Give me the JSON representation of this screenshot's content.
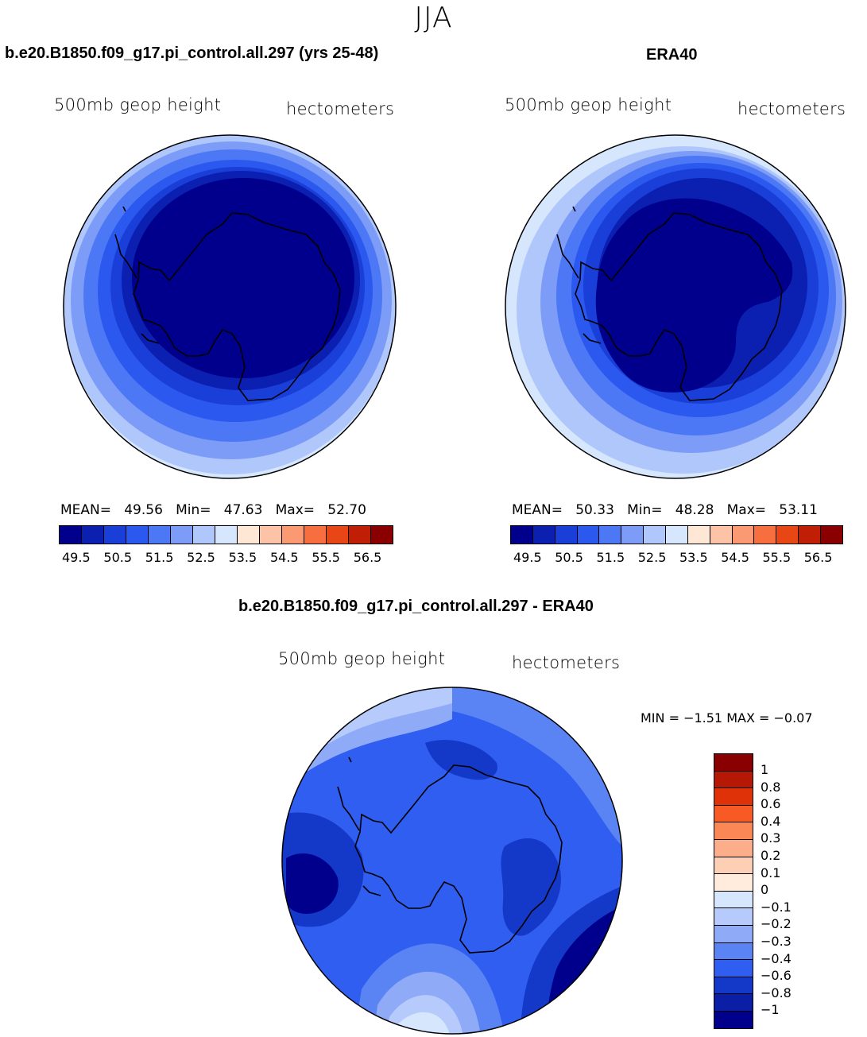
{
  "suptitle": "JJA",
  "panels": [
    {
      "title": "b.e20.B1850.f09_g17.pi_control.all.297 (yrs 25-48)",
      "field": "500mb geop height",
      "units": "hectometers",
      "mean_label": "MEAN=",
      "mean": "49.56",
      "min_label": "Min=",
      "min": "47.63",
      "max_label": "Max=",
      "max": "52.70",
      "colors": [
        "#00008c",
        "#0b1fb0",
        "#1a3fd8",
        "#2b59ef",
        "#4d78f5",
        "#7d9cf8",
        "#b0c7fb",
        "#d6e6fd",
        "#ffe7d6",
        "#fdc3a7",
        "#fb9a72",
        "#f86f3f",
        "#e84614",
        "#c01f06",
        "#8a0000"
      ]
    },
    {
      "title": "ERA40",
      "field": "500mb geop height",
      "units": "hectometers",
      "mean_label": "MEAN=",
      "mean": "50.33",
      "min_label": "Min=",
      "min": "48.28",
      "max_label": "Max=",
      "max": "53.11",
      "colors": [
        "#00008c",
        "#0b1fb0",
        "#1a3fd8",
        "#2b59ef",
        "#4d78f5",
        "#7d9cf8",
        "#b0c7fb",
        "#d6e6fd",
        "#ffe7d6",
        "#fdc3a7",
        "#fb9a72",
        "#f86f3f",
        "#e84614",
        "#c01f06",
        "#8a0000"
      ]
    }
  ],
  "colorbar_ticks": [
    "49.5",
    "50.5",
    "51.5",
    "52.5",
    "53.5",
    "54.5",
    "55.5",
    "56.5"
  ],
  "diff": {
    "title": "b.e20.B1850.f09_g17.pi_control.all.297 - ERA40",
    "field": "500mb geop height",
    "units": "hectometers",
    "minmax": "MIN =  −1.51 MAX =  −0.07",
    "levels": [
      "1",
      "0.8",
      "0.6",
      "0.4",
      "0.3",
      "0.2",
      "0.1",
      "0",
      "−0.1",
      "−0.2",
      "−0.3",
      "−0.4",
      "−0.6",
      "−0.8",
      "−1"
    ],
    "colors": [
      "#8a0000",
      "#b51804",
      "#df3209",
      "#f85a25",
      "#fb8656",
      "#fcae8a",
      "#fdcfb4",
      "#ffecdc",
      "#d6e6fd",
      "#b6cbfb",
      "#8fabf8",
      "#5a84f4",
      "#2f5ef0",
      "#1438c8",
      "#0a1fa6",
      "#00008c"
    ]
  },
  "chart_data": {
    "type": "heatmap",
    "season": "JJA",
    "maps": [
      {
        "name": "b.e20.B1850.f09_g17.pi_control.all.297 (yrs 25-48)",
        "mean": 49.56,
        "min": 47.63,
        "max": 52.7,
        "units": "hectometers"
      },
      {
        "name": "ERA40",
        "mean": 50.33,
        "min": 48.28,
        "max": 53.11,
        "units": "hectometers"
      },
      {
        "name": "b.e20.B1850.f09_g17.pi_control.all.297 - ERA40",
        "min": -1.51,
        "max": -0.07,
        "units": "hectometers"
      }
    ]
  }
}
